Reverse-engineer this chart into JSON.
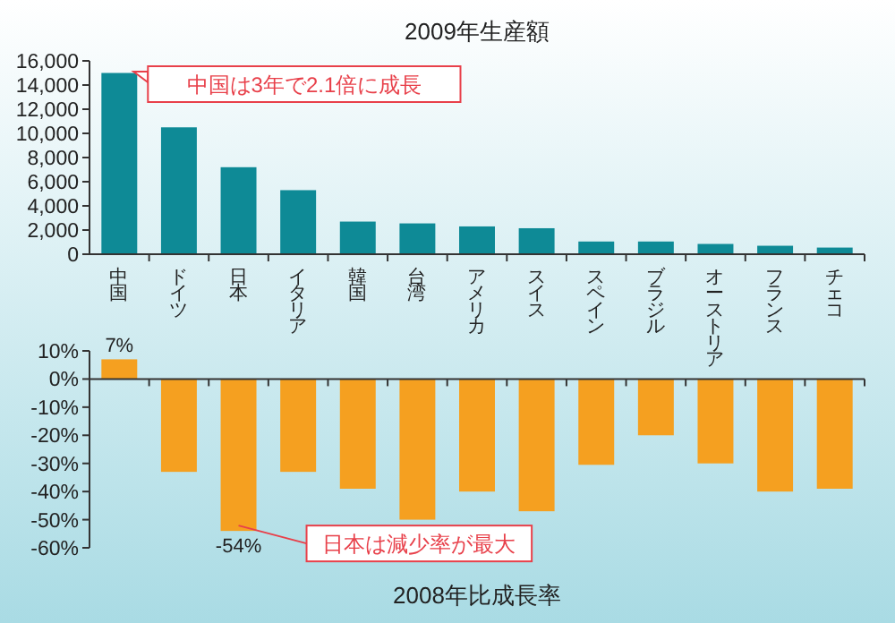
{
  "chart_data": [
    {
      "type": "bar",
      "title": "2009年生産額",
      "categories": [
        "中国",
        "ドイツ",
        "日本",
        "イタリア",
        "韓国",
        "台湾",
        "アメリカ",
        "スイス",
        "スペイン",
        "ブラジル",
        "オーストリア",
        "フランス",
        "チェコ"
      ],
      "values": [
        15000,
        10500,
        7200,
        5300,
        2700,
        2550,
        2300,
        2150,
        1050,
        1050,
        850,
        700,
        550
      ],
      "color": "#0e8a96",
      "ylim": [
        0,
        16000
      ],
      "yticks": [
        0,
        {
          "value": 2000,
          "label": "2,000"
        },
        {
          "value": 4000,
          "label": "4,000"
        },
        {
          "value": 6000,
          "label": "6,000"
        },
        {
          "value": 8000,
          "label": "8,000"
        },
        {
          "value": 10000,
          "label": "10,000"
        },
        {
          "value": 12000,
          "label": "12,000"
        },
        {
          "value": 14000,
          "label": "14,000"
        },
        {
          "value": 16000,
          "label": "16,000"
        }
      ],
      "annotations": [
        "中国は3年で2.1倍に成長"
      ]
    },
    {
      "type": "bar",
      "title": "2008年比成長率",
      "categories": [
        "中国",
        "ドイツ",
        "日本",
        "イタリア",
        "韓国",
        "台湾",
        "アメリカ",
        "スイス",
        "スペイン",
        "ブラジル",
        "オーストリア",
        "フランス",
        "チェコ"
      ],
      "values": [
        7,
        -33,
        -54,
        -33,
        -39,
        -50,
        -40,
        -47,
        -30.5,
        -20,
        -30,
        -40,
        -39
      ],
      "color": "#f5a020",
      "value_labels": [
        "7%",
        null,
        "-54%",
        null,
        null,
        null,
        null,
        null,
        null,
        null,
        null,
        null,
        null
      ],
      "ylim": [
        -60,
        10
      ],
      "yticks": [
        {
          "value": 10,
          "label": "10%"
        },
        {
          "value": 0,
          "label": "0%"
        },
        {
          "value": -10,
          "label": "-10%"
        },
        {
          "value": -20,
          "label": "-20%"
        },
        {
          "value": -30,
          "label": "-30%"
        },
        {
          "value": -40,
          "label": "-40%"
        },
        {
          "value": -50,
          "label": "-50%"
        },
        {
          "value": -60,
          "label": "-60%"
        }
      ],
      "tick_labels": "y",
      "annotations": [
        {
          "text": "日本は減少率が最大",
          "x": "日本",
          "y": -54
        }
      ]
    }
  ]
}
